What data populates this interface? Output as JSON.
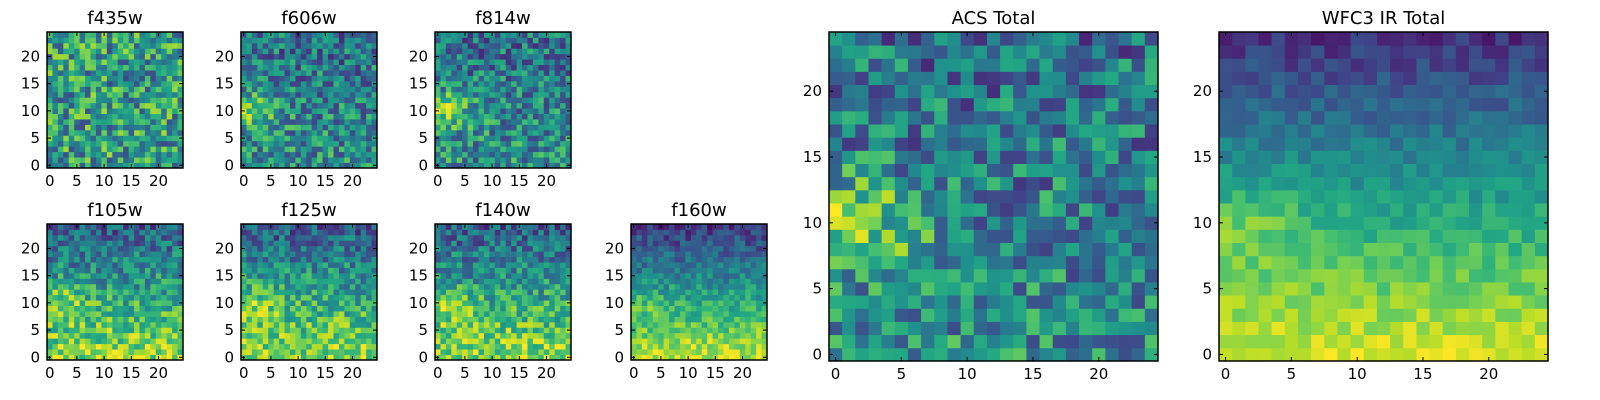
{
  "figure": {
    "background": "#ffffff",
    "colormap": "viridis"
  },
  "chart_data": [
    {
      "type": "heatmap",
      "title": "f435w",
      "rows": 25,
      "cols": 25,
      "xticks": [
        0,
        5,
        10,
        15,
        20
      ],
      "yticks": [
        0,
        5,
        10,
        15,
        20
      ],
      "pattern": "noise",
      "seed": 11
    },
    {
      "type": "heatmap",
      "title": "f606w",
      "rows": 25,
      "cols": 25,
      "xticks": [
        0,
        5,
        10,
        15,
        20
      ],
      "yticks": [
        0,
        5,
        10,
        15,
        20
      ],
      "pattern": "noise_blob",
      "seed": 23
    },
    {
      "type": "heatmap",
      "title": "f814w",
      "rows": 25,
      "cols": 25,
      "xticks": [
        0,
        5,
        10,
        15,
        20
      ],
      "yticks": [
        0,
        5,
        10,
        15,
        20
      ],
      "pattern": "noise_blob",
      "seed": 37
    },
    {
      "type": "heatmap",
      "title": "f105w",
      "rows": 25,
      "cols": 25,
      "xticks": [
        0,
        5,
        10,
        15,
        20
      ],
      "yticks": [
        0,
        5,
        10,
        15,
        20
      ],
      "pattern": "gradient",
      "seed": 41
    },
    {
      "type": "heatmap",
      "title": "f125w",
      "rows": 25,
      "cols": 25,
      "xticks": [
        0,
        5,
        10,
        15,
        20
      ],
      "yticks": [
        0,
        5,
        10,
        15,
        20
      ],
      "pattern": "gradient",
      "seed": 53
    },
    {
      "type": "heatmap",
      "title": "f140w",
      "rows": 25,
      "cols": 25,
      "xticks": [
        0,
        5,
        10,
        15,
        20
      ],
      "yticks": [
        0,
        5,
        10,
        15,
        20
      ],
      "pattern": "gradient",
      "seed": 67
    },
    {
      "type": "heatmap",
      "title": "f160w",
      "rows": 25,
      "cols": 25,
      "xticks": [
        0,
        5,
        10,
        15,
        20
      ],
      "yticks": [
        0,
        5,
        10,
        15,
        20
      ],
      "pattern": "gradient_strong",
      "seed": 79
    },
    {
      "type": "heatmap",
      "title": "ACS Total",
      "rows": 25,
      "cols": 25,
      "xticks": [
        0,
        5,
        10,
        15,
        20
      ],
      "yticks": [
        0,
        5,
        10,
        15,
        20
      ],
      "pattern": "noise_blob",
      "seed": 83
    },
    {
      "type": "heatmap",
      "title": "WFC3 IR Total",
      "rows": 25,
      "cols": 25,
      "xticks": [
        0,
        5,
        10,
        15,
        20
      ],
      "yticks": [
        0,
        5,
        10,
        15,
        20
      ],
      "pattern": "gradient_smooth",
      "seed": 97
    }
  ]
}
